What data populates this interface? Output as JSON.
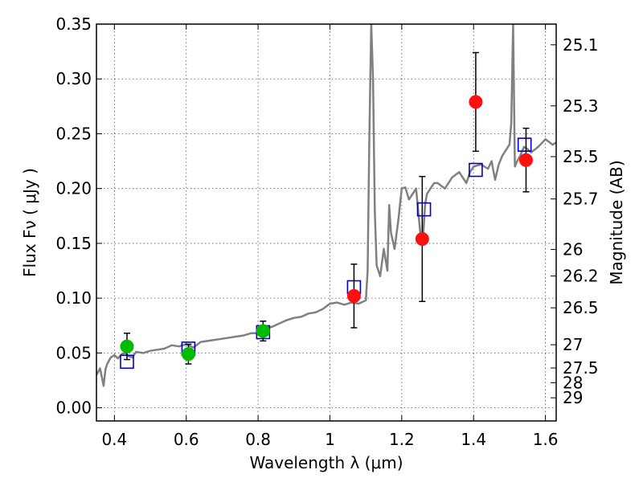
{
  "chart_data": {
    "type": "scatter",
    "xlabel": "Wavelength  λ (μm)",
    "ylabel": "Flux  Fν  ( μJy )",
    "ylabel_right": "Magnitude (AB)",
    "xlim": [
      0.35,
      1.63
    ],
    "ylim": [
      -0.012,
      0.35
    ],
    "grid": true,
    "x_ticks": [
      0.4,
      0.6,
      0.8,
      1.0,
      1.2,
      1.4,
      1.6
    ],
    "x_tick_labels": [
      "0.4",
      "0.6",
      "0.8",
      "1",
      "1.2",
      "1.4",
      "1.6"
    ],
    "y_ticks": [
      0.0,
      0.05,
      0.1,
      0.15,
      0.2,
      0.25,
      0.3,
      0.35
    ],
    "y_tick_labels": [
      "0.00",
      "0.05",
      "0.10",
      "0.15",
      "0.20",
      "0.25",
      "0.30",
      "0.35"
    ],
    "right_ticks": [
      {
        "label": "25.1",
        "flux": 0.3311
      },
      {
        "label": "25.3",
        "flux": 0.2754
      },
      {
        "label": "25.5",
        "flux": 0.2291
      },
      {
        "label": "25.7",
        "flux": 0.1905
      },
      {
        "label": "26",
        "flux": 0.1445
      },
      {
        "label": "26.2",
        "flux": 0.1202
      },
      {
        "label": "26.5",
        "flux": 0.0912
      },
      {
        "label": "27",
        "flux": 0.0575
      },
      {
        "label": "27.5",
        "flux": 0.0363
      },
      {
        "label": "28",
        "flux": 0.0229
      },
      {
        "label": "29",
        "flux": 0.0091
      }
    ],
    "series": [
      {
        "marker": "circle",
        "color": "#00bb00",
        "x": [
          0.435,
          0.606,
          0.814
        ],
        "y": [
          0.056,
          0.049,
          0.07
        ],
        "yerr": [
          0.012,
          0.009,
          0.009
        ]
      },
      {
        "marker": "circle",
        "color": "#ff1010",
        "x": [
          1.067,
          1.257,
          1.406,
          1.546
        ],
        "y": [
          0.102,
          0.154,
          0.279,
          0.226
        ],
        "yerr": [
          0.029,
          0.057,
          0.045,
          0.029
        ]
      },
      {
        "marker": "open-square",
        "color": "#0000cc",
        "x": [
          0.435,
          0.606,
          0.814,
          1.067,
          1.262,
          1.406,
          1.542
        ],
        "y": [
          0.042,
          0.054,
          0.069,
          0.11,
          0.181,
          0.217,
          0.24
        ]
      },
      {
        "marker": "line",
        "color": "#808080",
        "x": [
          0.35,
          0.36,
          0.37,
          0.375,
          0.38,
          0.39,
          0.4,
          0.41,
          0.42,
          0.43,
          0.44,
          0.45,
          0.46,
          0.48,
          0.5,
          0.52,
          0.54,
          0.56,
          0.58,
          0.6,
          0.62,
          0.64,
          0.66,
          0.68,
          0.7,
          0.72,
          0.74,
          0.76,
          0.78,
          0.8,
          0.82,
          0.84,
          0.86,
          0.88,
          0.9,
          0.92,
          0.94,
          0.96,
          0.98,
          1.0,
          1.02,
          1.04,
          1.06,
          1.08,
          1.1,
          1.105,
          1.11,
          1.115,
          1.12,
          1.125,
          1.13,
          1.14,
          1.15,
          1.16,
          1.165,
          1.17,
          1.18,
          1.19,
          1.2,
          1.21,
          1.22,
          1.23,
          1.24,
          1.25,
          1.255,
          1.26,
          1.265,
          1.27,
          1.28,
          1.29,
          1.3,
          1.32,
          1.34,
          1.36,
          1.37,
          1.38,
          1.39,
          1.4,
          1.42,
          1.44,
          1.45,
          1.46,
          1.47,
          1.48,
          1.49,
          1.5,
          1.505,
          1.51,
          1.515,
          1.52,
          1.53,
          1.54,
          1.55,
          1.56,
          1.58,
          1.6,
          1.62,
          1.63
        ],
        "y": [
          0.03,
          0.036,
          0.02,
          0.035,
          0.04,
          0.046,
          0.048,
          0.045,
          0.049,
          0.05,
          0.047,
          0.046,
          0.051,
          0.05,
          0.052,
          0.053,
          0.054,
          0.057,
          0.056,
          0.058,
          0.055,
          0.06,
          0.061,
          0.062,
          0.063,
          0.064,
          0.065,
          0.066,
          0.068,
          0.068,
          0.072,
          0.074,
          0.077,
          0.08,
          0.082,
          0.083,
          0.086,
          0.087,
          0.09,
          0.095,
          0.096,
          0.094,
          0.096,
          0.095,
          0.098,
          0.125,
          0.25,
          0.35,
          0.3,
          0.18,
          0.13,
          0.12,
          0.145,
          0.125,
          0.185,
          0.16,
          0.145,
          0.17,
          0.2,
          0.201,
          0.19,
          0.195,
          0.2,
          0.165,
          0.15,
          0.16,
          0.185,
          0.195,
          0.2,
          0.205,
          0.205,
          0.2,
          0.21,
          0.215,
          0.21,
          0.205,
          0.215,
          0.22,
          0.222,
          0.218,
          0.225,
          0.208,
          0.222,
          0.23,
          0.235,
          0.24,
          0.26,
          0.35,
          0.22,
          0.224,
          0.23,
          0.238,
          0.236,
          0.233,
          0.238,
          0.245,
          0.24,
          0.242
        ]
      }
    ]
  }
}
